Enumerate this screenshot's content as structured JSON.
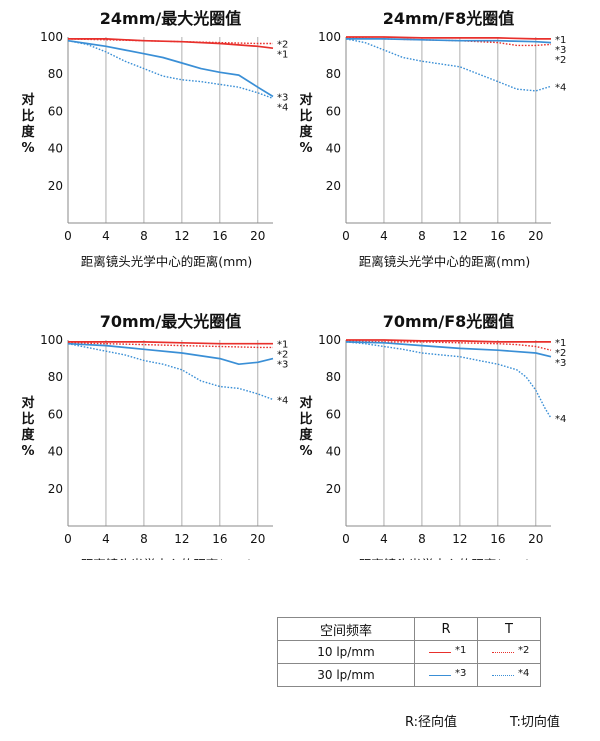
{
  "colors": {
    "r": "#e8302c",
    "t": "#3a8fd6",
    "axis": "#888888",
    "grid": "#9a9a9a",
    "text": "#111111"
  },
  "chart_data": [
    {
      "type": "line",
      "title": "24mm/最大光圈值",
      "xlabel": "距离镜头光学中心的距离(mm)",
      "ylabel": "对比度%",
      "xlim": [
        0,
        21.6
      ],
      "ylim": [
        0,
        100
      ],
      "xticks": [
        0,
        4,
        8,
        12,
        16,
        20
      ],
      "yticks": [
        20,
        40,
        60,
        80,
        100
      ],
      "grid": "vertical",
      "series": [
        {
          "name": "*1",
          "label": "*1",
          "color": "#e8302c",
          "dash": "solid",
          "x": [
            0,
            4,
            8,
            12,
            16,
            20,
            21.6
          ],
          "y": [
            99,
            99,
            98,
            97.5,
            96.5,
            95,
            94
          ]
        },
        {
          "name": "*2",
          "label": "*2",
          "color": "#e8302c",
          "dash": "dotted",
          "x": [
            0,
            4,
            8,
            12,
            16,
            20,
            21.6
          ],
          "y": [
            99,
            98.5,
            98,
            97.5,
            97,
            96.5,
            96.5
          ]
        },
        {
          "name": "*3",
          "label": "*3",
          "color": "#3a8fd6",
          "dash": "solid",
          "x": [
            0,
            2,
            4,
            6,
            8,
            10,
            12,
            14,
            16,
            18,
            20,
            21.6
          ],
          "y": [
            98,
            96.5,
            95,
            93,
            91,
            89,
            86,
            83,
            81,
            79.5,
            73,
            68
          ]
        },
        {
          "name": "*4",
          "label": "*4",
          "color": "#3a8fd6",
          "dash": "dotted",
          "x": [
            0,
            2,
            4,
            6,
            8,
            10,
            12,
            14,
            16,
            18,
            20,
            21.6
          ],
          "y": [
            98,
            96,
            92,
            87,
            83,
            79,
            77,
            76,
            74.5,
            73,
            70,
            67
          ]
        }
      ]
    },
    {
      "type": "line",
      "title": "24mm/F8光圈值",
      "xlabel": "距离镜头光学中心的距离(mm)",
      "ylabel": "对比度%",
      "xlim": [
        0,
        21.6
      ],
      "ylim": [
        0,
        100
      ],
      "xticks": [
        0,
        4,
        8,
        12,
        16,
        20
      ],
      "yticks": [
        20,
        40,
        60,
        80,
        100
      ],
      "grid": "vertical",
      "series": [
        {
          "name": "*1",
          "label": "*1",
          "color": "#e8302c",
          "dash": "solid",
          "x": [
            0,
            4,
            8,
            12,
            16,
            20,
            21.6
          ],
          "y": [
            100,
            100,
            99.5,
            99.5,
            99.5,
            99,
            99
          ]
        },
        {
          "name": "*2",
          "label": "*2",
          "color": "#e8302c",
          "dash": "dotted",
          "x": [
            0,
            4,
            8,
            12,
            16,
            18,
            20,
            21.6
          ],
          "y": [
            99.5,
            99,
            98.5,
            98,
            97,
            95.5,
            95.5,
            96
          ]
        },
        {
          "name": "*3",
          "label": "*3",
          "color": "#3a8fd6",
          "dash": "solid",
          "x": [
            0,
            4,
            8,
            12,
            16,
            20,
            21.6
          ],
          "y": [
            99,
            99,
            98.5,
            98,
            98,
            97.5,
            97
          ]
        },
        {
          "name": "*4",
          "label": "*4",
          "color": "#3a8fd6",
          "dash": "dotted",
          "x": [
            0,
            2,
            4,
            6,
            8,
            10,
            12,
            14,
            16,
            18,
            20,
            21.6
          ],
          "y": [
            99,
            97,
            93,
            89,
            87,
            85.5,
            84,
            80,
            76,
            72,
            71,
            73.5
          ]
        }
      ]
    },
    {
      "type": "line",
      "title": "70mm/最大光圈值",
      "xlabel": "距离镜头光学中心的距离(mm)",
      "ylabel": "对比度%",
      "xlim": [
        0,
        21.6
      ],
      "ylim": [
        0,
        100
      ],
      "xticks": [
        0,
        4,
        8,
        12,
        16,
        20
      ],
      "yticks": [
        20,
        40,
        60,
        80,
        100
      ],
      "grid": "vertical",
      "series": [
        {
          "name": "*1",
          "label": "*1",
          "color": "#e8302c",
          "dash": "solid",
          "x": [
            0,
            4,
            8,
            12,
            16,
            20,
            21.6
          ],
          "y": [
            99,
            99,
            99,
            98.5,
            98,
            98,
            98
          ]
        },
        {
          "name": "*2",
          "label": "*2",
          "color": "#e8302c",
          "dash": "dotted",
          "x": [
            0,
            4,
            8,
            12,
            16,
            20,
            21.6
          ],
          "y": [
            98.5,
            98,
            97.5,
            97,
            96.5,
            96,
            96
          ]
        },
        {
          "name": "*3",
          "label": "*3",
          "color": "#3a8fd6",
          "dash": "solid",
          "x": [
            0,
            4,
            8,
            12,
            16,
            18,
            20,
            21.6
          ],
          "y": [
            98,
            97,
            95,
            93,
            90,
            87,
            88,
            90
          ]
        },
        {
          "name": "*4",
          "label": "*4",
          "color": "#3a8fd6",
          "dash": "dotted",
          "x": [
            0,
            2,
            4,
            6,
            8,
            10,
            12,
            14,
            16,
            18,
            20,
            21.6
          ],
          "y": [
            98,
            96,
            94,
            92,
            89,
            87,
            84,
            78,
            75,
            74,
            71,
            68
          ]
        }
      ]
    },
    {
      "type": "line",
      "title": "70mm/F8光圈值",
      "xlabel": "距离镜头光学中心的距离(mm)",
      "ylabel": "对比度%",
      "xlim": [
        0,
        21.6
      ],
      "ylim": [
        0,
        100
      ],
      "xticks": [
        0,
        4,
        8,
        12,
        16,
        20
      ],
      "yticks": [
        20,
        40,
        60,
        80,
        100
      ],
      "grid": "vertical",
      "series": [
        {
          "name": "*1",
          "label": "*1",
          "color": "#e8302c",
          "dash": "solid",
          "x": [
            0,
            4,
            8,
            12,
            16,
            20,
            21.6
          ],
          "y": [
            100,
            100,
            99.5,
            99.5,
            99,
            99,
            99
          ]
        },
        {
          "name": "*2",
          "label": "*2",
          "color": "#e8302c",
          "dash": "dotted",
          "x": [
            0,
            4,
            8,
            12,
            16,
            18,
            20,
            21.6
          ],
          "y": [
            99.5,
            99,
            99,
            98.5,
            98,
            97.5,
            96.5,
            94.5
          ]
        },
        {
          "name": "*3",
          "label": "*3",
          "color": "#3a8fd6",
          "dash": "solid",
          "x": [
            0,
            4,
            8,
            12,
            16,
            20,
            21.6
          ],
          "y": [
            99,
            98.5,
            97,
            95.5,
            94.5,
            93,
            91
          ]
        },
        {
          "name": "*4",
          "label": "*4",
          "color": "#3a8fd6",
          "dash": "dotted",
          "x": [
            0,
            2,
            4,
            6,
            8,
            10,
            12,
            14,
            16,
            18,
            19,
            20,
            21,
            21.6
          ],
          "y": [
            99,
            98,
            96.5,
            95,
            93,
            92,
            91,
            89,
            87,
            84,
            80,
            73,
            63,
            58
          ]
        }
      ]
    }
  ],
  "legend": {
    "header": {
      "freq": "空间频率",
      "r": "R",
      "t": "T"
    },
    "rows": [
      {
        "label": "10 lp/mm",
        "r_mark": "*1",
        "t_mark": "*2"
      },
      {
        "label": "30 lp/mm",
        "r_mark": "*3",
        "t_mark": "*4"
      }
    ]
  },
  "notes": {
    "r": "R:径向值",
    "t": "T:切向值"
  }
}
